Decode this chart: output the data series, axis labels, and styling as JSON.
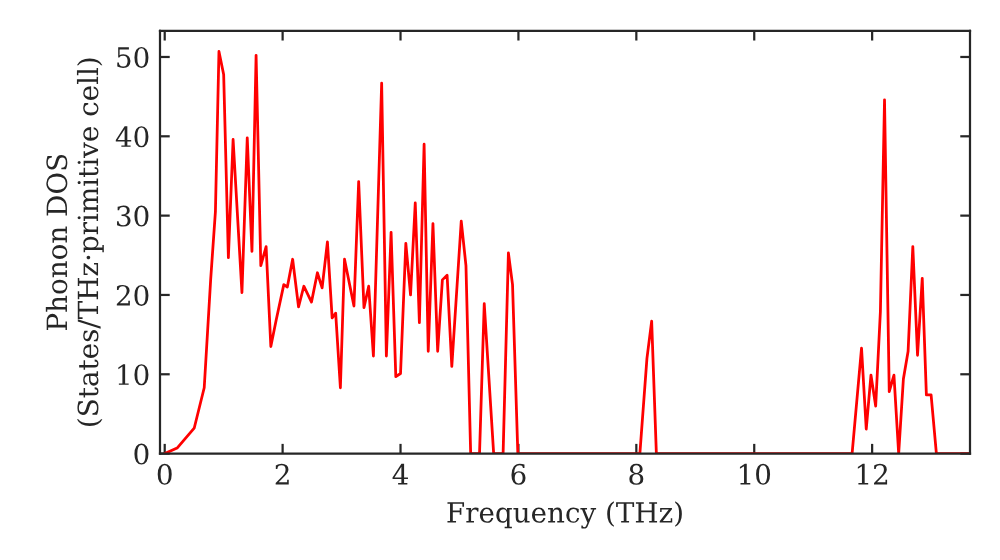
{
  "chart_data": {
    "type": "line",
    "xlabel": "Frequency (THz)",
    "ylabel": "Phonon DOS\n(States/THz·primitive cell)",
    "xlim": [
      -0.08,
      13.66
    ],
    "ylim": [
      0,
      53.3
    ],
    "xticks": [
      0,
      2,
      4,
      6,
      8,
      10,
      12
    ],
    "yticks": [
      0,
      10,
      20,
      30,
      40,
      50
    ],
    "grid": false,
    "legend": false,
    "series": [
      {
        "color": "#ff0000",
        "x": [
          0,
          0.21,
          0.5,
          0.67,
          0.78,
          0.86,
          0.92,
          1.0,
          1.08,
          1.16,
          1.31,
          1.4,
          1.48,
          1.55,
          1.63,
          1.72,
          1.8,
          1.89,
          2.02,
          2.08,
          2.17,
          2.27,
          2.36,
          2.49,
          2.59,
          2.67,
          2.76,
          2.84,
          2.9,
          2.98,
          3.05,
          3.21,
          3.29,
          3.38,
          3.46,
          3.54,
          3.68,
          3.76,
          3.84,
          3.92,
          4.0,
          4.09,
          4.17,
          4.25,
          4.32,
          4.4,
          4.47,
          4.55,
          4.63,
          4.71,
          4.79,
          4.87,
          5.03,
          5.11,
          5.19,
          5.34,
          5.42,
          5.58,
          5.74,
          5.83,
          5.9,
          5.99,
          8.06,
          8.18,
          8.26,
          8.34,
          11.66,
          11.82,
          11.9,
          11.98,
          12.06,
          12.14,
          12.21,
          12.29,
          12.37,
          12.45,
          12.53,
          12.61,
          12.69,
          12.77,
          12.85,
          12.92,
          13.0,
          13.09,
          13.66
        ],
        "values": [
          0,
          0.7,
          3.2,
          8.3,
          22,
          30.5,
          50.7,
          47.8,
          24.7,
          39.6,
          20.3,
          39.8,
          25.5,
          50.2,
          23.7,
          26.1,
          13.5,
          16.8,
          21.3,
          21.0,
          24.5,
          18.5,
          21.1,
          19.1,
          22.8,
          20.9,
          26.7,
          17.1,
          17.7,
          8.3,
          24.5,
          18.6,
          34.3,
          18.4,
          21.1,
          12.3,
          46.7,
          12.3,
          27.9,
          9.7,
          10.1,
          26.5,
          20.0,
          31.6,
          16.5,
          39.0,
          12.9,
          29.0,
          12.9,
          21.9,
          22.5,
          11.0,
          29.3,
          23.7,
          0,
          0,
          18.9,
          0,
          0,
          25.3,
          21.3,
          0,
          0,
          12.0,
          16.7,
          0,
          0,
          13.3,
          3.1,
          9.9,
          6.0,
          17.9,
          44.6,
          7.8,
          9.9,
          0,
          9.4,
          12.9,
          26.1,
          12.4,
          22.1,
          7.4,
          7.4,
          0,
          0
        ]
      }
    ]
  }
}
